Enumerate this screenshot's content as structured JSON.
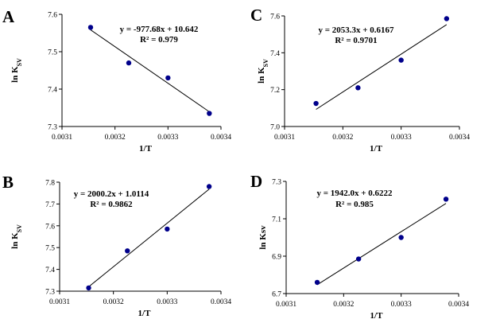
{
  "chart_data": [
    {
      "type": "scatter",
      "panel_label": "A",
      "x": [
        0.003154,
        0.003226,
        0.0033,
        0.003378
      ],
      "y": [
        7.565,
        7.47,
        7.43,
        7.335
      ],
      "xlim": [
        0.0031,
        0.0034
      ],
      "ylim": [
        7.3,
        7.6
      ],
      "xticks": [
        "0.0031",
        "0.0032",
        "0.0033",
        "0.0034"
      ],
      "yticks": [
        "7.3",
        "7.4",
        "7.5",
        "7.6"
      ],
      "xlabel": "1/T",
      "ylabel": "ln K",
      "ylabel_sub": "SV",
      "fit": {
        "slope": -977.68,
        "intercept": 10.642
      },
      "equation": "y = -977.68x + 10.642",
      "r2": "R² = 0.979",
      "marker_color": "#00008b"
    },
    {
      "type": "scatter",
      "panel_label": "C",
      "x": [
        0.003154,
        0.003226,
        0.0033,
        0.003378
      ],
      "y": [
        7.125,
        7.21,
        7.36,
        7.585
      ],
      "xlim": [
        0.0031,
        0.0034
      ],
      "ylim": [
        7.0,
        7.6
      ],
      "xticks": [
        "0.0031",
        "0.0032",
        "0.0033",
        "0.0034"
      ],
      "yticks": [
        "7.0",
        "7.2",
        "7.4",
        "7.6"
      ],
      "xlabel": "1/T",
      "ylabel": "ln K",
      "ylabel_sub": "SV",
      "fit": {
        "slope": 2053.3,
        "intercept": 0.6167
      },
      "equation": "y = 2053.3x + 0.6167",
      "r2": "R² = 0.9701",
      "marker_color": "#00008b"
    },
    {
      "type": "scatter",
      "panel_label": "B",
      "x": [
        0.003154,
        0.003226,
        0.0033,
        0.003378
      ],
      "y": [
        7.315,
        7.485,
        7.585,
        7.78
      ],
      "xlim": [
        0.0031,
        0.0034
      ],
      "ylim": [
        7.3,
        7.8
      ],
      "xticks": [
        "0.0031",
        "0.0032",
        "0.0033",
        "0.0034"
      ],
      "yticks": [
        "7.3",
        "7.4",
        "7.5",
        "7.6",
        "7.7",
        "7.8"
      ],
      "xlabel": "1/T",
      "ylabel": "ln K",
      "ylabel_sub": "SV",
      "fit": {
        "slope": 2000.2,
        "intercept": 1.0114
      },
      "equation": "y = 2000.2x + 1.0114",
      "r2": "R² = 0.9862",
      "marker_color": "#00008b"
    },
    {
      "type": "scatter",
      "panel_label": "D",
      "x": [
        0.003154,
        0.003226,
        0.0033,
        0.003378
      ],
      "y": [
        6.76,
        6.885,
        7.0,
        7.205
      ],
      "xlim": [
        0.0031,
        0.0034
      ],
      "ylim": [
        6.7,
        7.3
      ],
      "xticks": [
        "0.0031",
        "0.0032",
        "0.0033",
        "0.0034"
      ],
      "yticks": [
        "6.7",
        "6.9",
        "7.1",
        "7.3"
      ],
      "xlabel": "1/T",
      "ylabel": "ln Ksv",
      "ylabel_sub": "",
      "fit": {
        "slope": 1942.0,
        "intercept": 0.6222
      },
      "equation": "y = 1942.0x + 0.6222",
      "r2": "R² = 0.985",
      "marker_color": "#00008b"
    }
  ]
}
